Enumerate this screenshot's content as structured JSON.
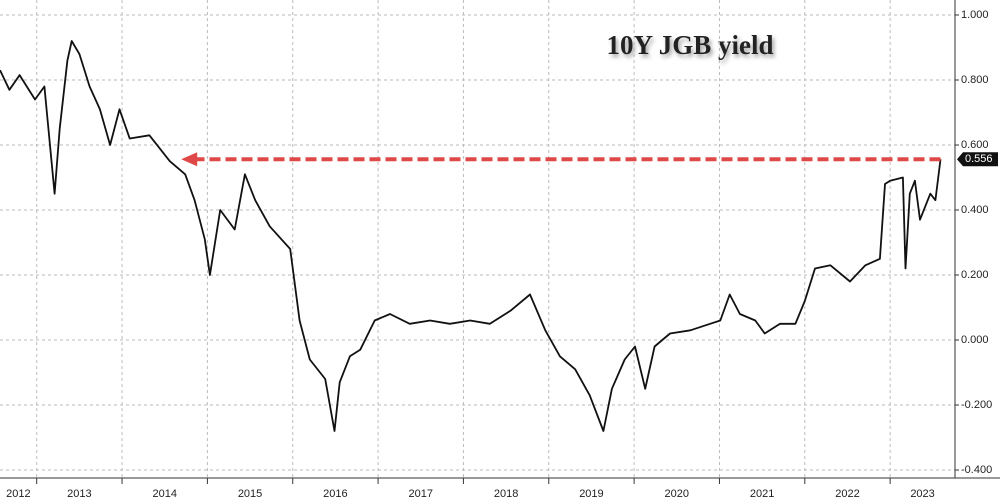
{
  "chart_data": {
    "type": "line",
    "title": "10Y JGB yield",
    "x": [
      2012.57,
      2012.68,
      2012.8,
      2012.98,
      2013.09,
      2013.21,
      2013.27,
      2013.36,
      2013.41,
      2013.5,
      2013.62,
      2013.74,
      2013.86,
      2013.97,
      2014.09,
      2014.32,
      2014.56,
      2014.74,
      2014.85,
      2014.97,
      2015.03,
      2015.15,
      2015.32,
      2015.44,
      2015.56,
      2015.73,
      2015.97,
      2016.08,
      2016.2,
      2016.38,
      2016.49,
      2016.55,
      2016.67,
      2016.79,
      2016.96,
      2017.14,
      2017.37,
      2017.61,
      2017.84,
      2018.08,
      2018.31,
      2018.55,
      2018.78,
      2018.96,
      2019.13,
      2019.31,
      2019.48,
      2019.64,
      2019.74,
      2019.89,
      2020.01,
      2020.13,
      2020.24,
      2020.42,
      2020.66,
      2020.89,
      2021.01,
      2021.12,
      2021.24,
      2021.42,
      2021.53,
      2021.71,
      2021.89,
      2022.0,
      2022.12,
      2022.3,
      2022.53,
      2022.71,
      2022.88,
      2022.94,
      2023.0,
      2023.15,
      2023.18,
      2023.23,
      2023.29,
      2023.35,
      2023.47,
      2023.53,
      2023.59
    ],
    "series": [
      {
        "color": "#111111",
        "values": [
          0.83,
          0.77,
          0.815,
          0.74,
          0.78,
          0.45,
          0.65,
          0.86,
          0.92,
          0.88,
          0.78,
          0.71,
          0.6,
          0.71,
          0.62,
          0.63,
          0.55,
          0.51,
          0.43,
          0.31,
          0.2,
          0.4,
          0.34,
          0.51,
          0.43,
          0.35,
          0.28,
          0.06,
          -0.06,
          -0.12,
          -0.28,
          -0.13,
          -0.05,
          -0.03,
          0.06,
          0.08,
          0.05,
          0.06,
          0.05,
          0.06,
          0.05,
          0.09,
          0.14,
          0.03,
          -0.05,
          -0.09,
          -0.17,
          -0.28,
          -0.15,
          -0.06,
          -0.02,
          -0.15,
          -0.02,
          0.02,
          0.03,
          0.05,
          0.06,
          0.14,
          0.08,
          0.06,
          0.02,
          0.05,
          0.05,
          0.12,
          0.22,
          0.23,
          0.18,
          0.23,
          0.25,
          0.48,
          0.49,
          0.5,
          0.22,
          0.45,
          0.49,
          0.37,
          0.45,
          0.43,
          0.556
        ]
      }
    ],
    "last_value_label": 0.556,
    "xlim": [
      2012.57,
      2023.76
    ],
    "xticks": [
      2012,
      2013,
      2014,
      2015,
      2016,
      2017,
      2018,
      2019,
      2020,
      2021,
      2022,
      2023
    ],
    "ylim": [
      -0.4,
      1.0
    ],
    "yticks": [
      {
        "value": 1.0,
        "label": "1.000"
      },
      {
        "value": 0.8,
        "label": "0.800"
      },
      {
        "value": 0.6,
        "label": "0.600"
      },
      {
        "value": 0.4,
        "label": "0.400"
      },
      {
        "value": 0.2,
        "label": "0.200"
      },
      {
        "value": 0.0,
        "label": "0.000"
      },
      {
        "value": -0.2,
        "label": "-0.200"
      },
      {
        "value": -0.4,
        "label": "-0.400"
      }
    ],
    "grid": true,
    "reference_color": "#e04848"
  }
}
